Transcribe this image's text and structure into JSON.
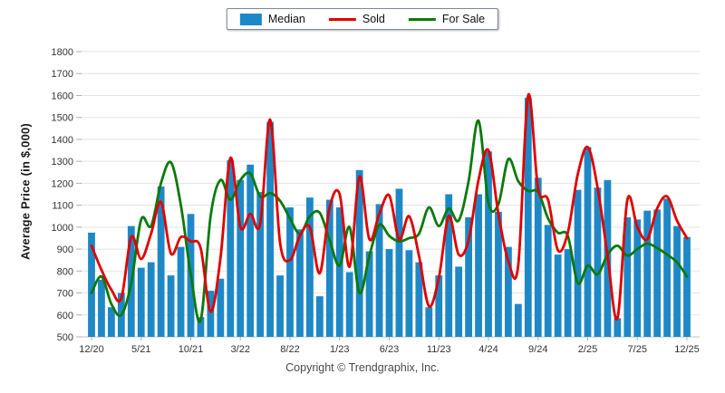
{
  "legend": {
    "items": [
      {
        "label": "Median",
        "swatch": "bar-swatch",
        "color": "#1E88C7"
      },
      {
        "label": "Sold",
        "swatch": "line-swatch",
        "color": "#E00000"
      },
      {
        "label": "For Sale",
        "swatch": "line-swatch",
        "color": "#0A7A0A"
      }
    ]
  },
  "y_axis": {
    "title": "Average Price (in $,000)",
    "min": 500,
    "max": 1800,
    "step": 100
  },
  "footer": {
    "copyright": "Copyright © Trendgraphix, Inc."
  },
  "colors": {
    "bar": "#1E88C7",
    "sold": "#E00000",
    "for_sale": "#0A7A0A",
    "grid": "#E3E3E3",
    "axis": "#BFBFBF",
    "tick_text": "#333333"
  },
  "chart_data": {
    "type": "bar",
    "title": "",
    "xlabel": "",
    "ylabel": "Average Price (in $,000)",
    "ylim": [
      500,
      1800
    ],
    "grid": "horizontal",
    "legend_position": "top-center",
    "x_tick_labels": [
      "12/20",
      "5/21",
      "10/21",
      "3/22",
      "8/22",
      "1/23",
      "6/23",
      "11/23",
      "4/24",
      "9/24",
      "2/25",
      "7/25",
      "12/25"
    ],
    "categories": [
      "12/20",
      "1/21",
      "2/21",
      "3/21",
      "4/21",
      "5/21",
      "6/21",
      "7/21",
      "8/21",
      "9/21",
      "10/21",
      "11/21",
      "12/21",
      "1/22",
      "2/22",
      "3/22",
      "4/22",
      "5/22",
      "6/22",
      "7/22",
      "8/22",
      "9/22",
      "10/22",
      "11/22",
      "12/22",
      "1/23",
      "2/23",
      "3/23",
      "4/23",
      "5/23",
      "6/23",
      "7/23",
      "8/23",
      "9/23",
      "10/23",
      "11/23",
      "12/23",
      "1/24",
      "2/24",
      "3/24",
      "4/24",
      "5/24",
      "6/24",
      "7/24",
      "8/24",
      "9/24",
      "10/24",
      "11/24",
      "12/24",
      "1/25",
      "2/25",
      "3/25",
      "4/25",
      "5/25",
      "6/25",
      "7/25",
      "8/25",
      "9/25",
      "10/25",
      "11/25",
      "12/25"
    ],
    "series": [
      {
        "name": "Median",
        "type": "bar",
        "color": "#1E88C7",
        "values": [
          975,
          760,
          635,
          700,
          1005,
          815,
          840,
          1185,
          780,
          910,
          1060,
          590,
          710,
          765,
          1305,
          1215,
          1285,
          1160,
          1480,
          780,
          1090,
          990,
          1135,
          685,
          1125,
          1090,
          795,
          1260,
          890,
          1105,
          900,
          1175,
          895,
          840,
          635,
          780,
          1150,
          820,
          1045,
          1150,
          1345,
          1070,
          910,
          650,
          1590,
          1225,
          1010,
          875,
          900,
          1170,
          1365,
          1180,
          1215,
          585,
          1045,
          1035,
          1075,
          1080,
          1130,
          1005,
          955
        ]
      },
      {
        "name": "Sold",
        "type": "line",
        "color": "#E00000",
        "values": [
          915,
          805,
          715,
          675,
          955,
          855,
          970,
          1115,
          880,
          955,
          935,
          905,
          615,
          860,
          1315,
          1000,
          1060,
          1015,
          1490,
          930,
          850,
          960,
          1000,
          790,
          1090,
          1150,
          820,
          1230,
          945,
          1060,
          1145,
          945,
          1050,
          870,
          640,
          770,
          1050,
          875,
          940,
          1215,
          1350,
          1060,
          845,
          825,
          1600,
          1175,
          1125,
          895,
          975,
          1240,
          1365,
          1180,
          870,
          585,
          1125,
          1000,
          945,
          1085,
          1140,
          1030,
          950
        ]
      },
      {
        "name": "For Sale",
        "type": "line",
        "color": "#0A7A0A",
        "values": [
          700,
          775,
          650,
          600,
          745,
          1035,
          1005,
          1200,
          1295,
          1100,
          785,
          575,
          1050,
          1215,
          1125,
          1215,
          1245,
          1140,
          1155,
          1120,
          1040,
          970,
          1050,
          1065,
          940,
          825,
          1000,
          700,
          870,
          1010,
          960,
          935,
          950,
          970,
          1090,
          1005,
          1085,
          1030,
          1210,
          1485,
          1110,
          1105,
          1310,
          1210,
          1165,
          1160,
          1040,
          975,
          960,
          745,
          825,
          785,
          875,
          915,
          870,
          900,
          925,
          905,
          875,
          840,
          775
        ]
      }
    ]
  }
}
